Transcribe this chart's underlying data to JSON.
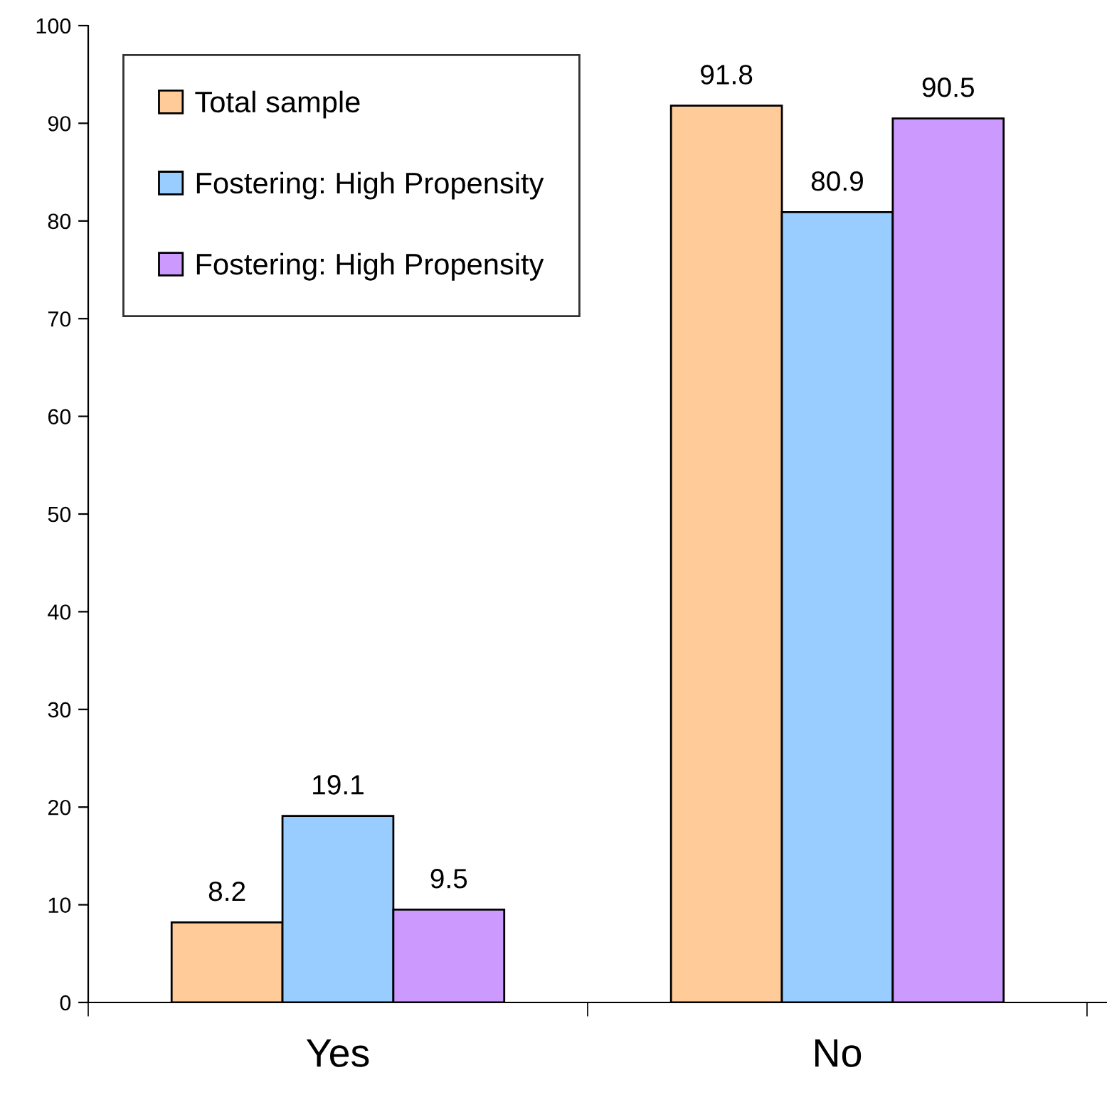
{
  "chart_data": {
    "type": "bar",
    "categories": [
      "Yes",
      "No"
    ],
    "series": [
      {
        "name": "Total sample",
        "color": "#ffcc99",
        "values": [
          8.2,
          91.8
        ]
      },
      {
        "name": "Fostering: High Propensity",
        "color": "#99ccff",
        "values": [
          19.1,
          80.9
        ]
      },
      {
        "name": "Fostering: High Propensity",
        "color": "#cc99ff",
        "values": [
          9.5,
          90.5
        ]
      }
    ],
    "ylim": [
      0,
      100
    ],
    "yticks": [
      0,
      10,
      20,
      30,
      40,
      50,
      60,
      70,
      80,
      90,
      100
    ],
    "data_labels": true,
    "grid": false,
    "legend": "top left"
  }
}
